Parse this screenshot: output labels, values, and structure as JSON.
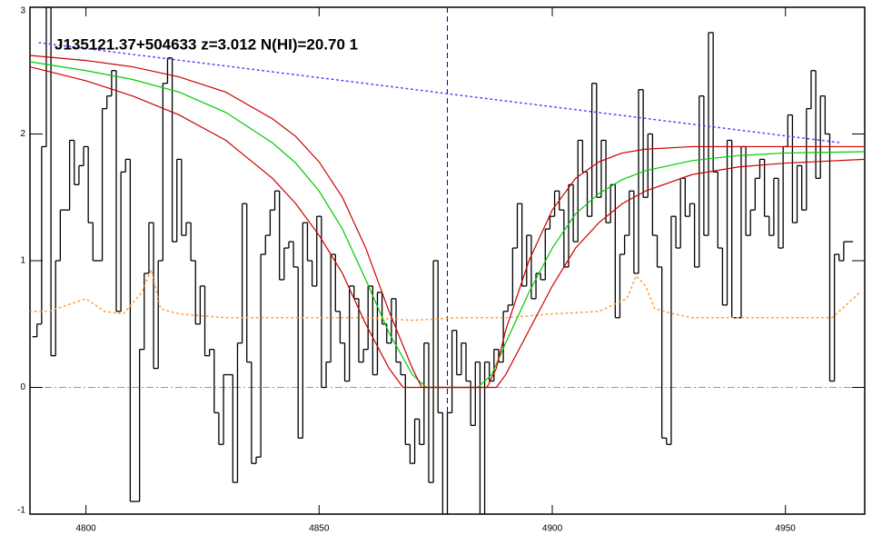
{
  "chart_data": {
    "type": "spectrum",
    "title": "J135121.37+504633 z=3.012 N(HI)=20.70 1",
    "xlim": [
      4788,
      4967
    ],
    "ylim": [
      -1,
      3
    ],
    "xticks": [
      4800,
      4850,
      4900,
      4950
    ],
    "yticks": [
      -1,
      0,
      1,
      2,
      3
    ],
    "reference_lines": [
      {
        "axis": "x",
        "value": 4877.5,
        "color": "#0000cc",
        "style": "dashed"
      },
      {
        "axis": "y",
        "value": 0,
        "color": "#999999",
        "style": "dashdot"
      }
    ],
    "series": [
      {
        "style": "step",
        "color": "#000000",
        "x": [
          4789,
          4790,
          4791,
          4792,
          4793,
          4794,
          4795,
          4796,
          4797,
          4798,
          4799,
          4800,
          4801,
          4802,
          4803,
          4804,
          4805,
          4806,
          4807,
          4808,
          4809,
          4810,
          4811,
          4812,
          4813,
          4814,
          4815,
          4816,
          4817,
          4818,
          4819,
          4820,
          4821,
          4822,
          4823,
          4824,
          4825,
          4826,
          4827,
          4828,
          4829,
          4830,
          4831,
          4832,
          4833,
          4834,
          4835,
          4836,
          4837,
          4838,
          4839,
          4840,
          4841,
          4842,
          4843,
          4844,
          4845,
          4846,
          4847,
          4848,
          4849,
          4850,
          4851,
          4852,
          4853,
          4854,
          4855,
          4856,
          4857,
          4858,
          4859,
          4860,
          4861,
          4862,
          4863,
          4864,
          4865,
          4866,
          4867,
          4868,
          4869,
          4870,
          4871,
          4872,
          4873,
          4874,
          4875,
          4876,
          4877,
          4878,
          4879,
          4880,
          4881,
          4882,
          4883,
          4884,
          4885,
          4886,
          4887,
          4888,
          4889,
          4890,
          4891,
          4892,
          4893,
          4894,
          4895,
          4896,
          4897,
          4898,
          4899,
          4900,
          4901,
          4902,
          4903,
          4904,
          4905,
          4906,
          4907,
          4908,
          4909,
          4910,
          4911,
          4912,
          4913,
          4914,
          4915,
          4916,
          4917,
          4918,
          4919,
          4920,
          4921,
          4922,
          4923,
          4924,
          4925,
          4926,
          4927,
          4928,
          4929,
          4930,
          4931,
          4932,
          4933,
          4934,
          4935,
          4936,
          4937,
          4938,
          4939,
          4940,
          4941,
          4942,
          4943,
          4944,
          4945,
          4946,
          4947,
          4948,
          4949,
          4950,
          4951,
          4952,
          4953,
          4954,
          4955,
          4956,
          4957,
          4958,
          4959,
          4960,
          4961,
          4962,
          4963,
          4964
        ],
        "values": [
          0.4,
          0.5,
          1.9,
          3.0,
          0.25,
          1.0,
          1.4,
          1.4,
          1.95,
          1.6,
          1.75,
          1.9,
          1.3,
          1.0,
          1.0,
          2.2,
          2.3,
          2.5,
          0.6,
          1.7,
          1.8,
          -0.9,
          -0.9,
          0.3,
          0.9,
          1.3,
          0.15,
          1.0,
          2.4,
          2.6,
          1.15,
          1.8,
          1.2,
          1.3,
          1.0,
          0.5,
          0.8,
          0.25,
          0.3,
          -0.2,
          -0.45,
          0.1,
          0.1,
          -0.75,
          0.35,
          1.45,
          0.2,
          -0.6,
          -0.55,
          1.05,
          1.2,
          1.4,
          1.55,
          0.85,
          1.1,
          1.15,
          0.95,
          -0.4,
          1.3,
          1.0,
          0.8,
          1.35,
          0.0,
          0.2,
          1.05,
          0.6,
          0.35,
          0.05,
          0.8,
          0.7,
          0.2,
          0.3,
          0.8,
          0.1,
          0.75,
          0.5,
          0.35,
          0.7,
          0.2,
          0.1,
          -0.45,
          -0.6,
          -0.25,
          -0.45,
          0.35,
          -0.75,
          1.0,
          -0.2,
          -1.0,
          -0.2,
          0.45,
          0.1,
          0.35,
          0.05,
          -0.3,
          0.2,
          -1.0,
          0.2,
          0.05,
          0.3,
          0.2,
          0.6,
          0.65,
          1.1,
          1.45,
          0.8,
          1.2,
          0.7,
          0.9,
          0.85,
          1.25,
          1.35,
          1.55,
          1.4,
          0.95,
          1.6,
          1.15,
          1.95,
          1.7,
          1.35,
          2.4,
          1.5,
          1.95,
          1.3,
          1.6,
          0.55,
          1.05,
          1.2,
          1.55,
          0.9,
          2.35,
          1.5,
          2.0,
          1.2,
          0.95,
          -0.4,
          -0.45,
          1.35,
          1.1,
          1.65,
          1.35,
          1.45,
          0.95,
          2.3,
          1.2,
          2.8,
          1.7,
          1.1,
          0.65,
          1.95,
          0.55,
          0.55,
          1.9,
          1.2,
          1.4,
          1.65,
          1.8,
          1.35,
          1.2,
          1.65,
          1.1,
          1.9,
          2.15,
          1.3,
          1.75,
          1.4,
          2.2,
          2.5,
          1.65,
          2.3,
          2.0,
          0.05,
          1.05,
          1.0,
          1.15,
          1.15
        ]
      },
      {
        "style": "dotted",
        "color": "#ff9933",
        "x": [
          4788,
          4792,
          4796,
          4800,
          4804,
          4808,
          4812,
          4814,
          4816,
          4820,
          4830,
          4840,
          4850,
          4860,
          4870,
          4880,
          4890,
          4900,
          4910,
          4916,
          4918,
          4920,
          4922,
          4926,
          4930,
          4940,
          4950,
          4960,
          4966
        ],
        "values": [
          0.6,
          0.6,
          0.65,
          0.7,
          0.6,
          0.58,
          0.75,
          0.93,
          0.62,
          0.58,
          0.55,
          0.55,
          0.55,
          0.55,
          0.53,
          0.55,
          0.55,
          0.58,
          0.6,
          0.7,
          0.88,
          0.8,
          0.62,
          0.58,
          0.55,
          0.55,
          0.55,
          0.55,
          0.75
        ]
      },
      {
        "style": "dotted",
        "color": "#6a33ff",
        "x": [
          4790,
          4962
        ],
        "values": [
          2.72,
          1.93
        ]
      },
      {
        "style": "line",
        "color": "#00cc00",
        "x": [
          4788,
          4800,
          4810,
          4820,
          4830,
          4840,
          4845,
          4850,
          4855,
          4860,
          4865,
          4870,
          4873,
          4884,
          4887,
          4890,
          4895,
          4900,
          4905,
          4910,
          4915,
          4920,
          4930,
          4940,
          4950,
          4967
        ],
        "values": [
          2.57,
          2.5,
          2.43,
          2.33,
          2.17,
          1.93,
          1.77,
          1.55,
          1.25,
          0.85,
          0.43,
          0.1,
          0.0,
          0.0,
          0.1,
          0.35,
          0.75,
          1.1,
          1.37,
          1.53,
          1.64,
          1.71,
          1.79,
          1.83,
          1.85,
          1.86
        ]
      },
      {
        "style": "line",
        "color": "#cc0000",
        "x": [
          4788,
          4800,
          4810,
          4820,
          4830,
          4840,
          4845,
          4850,
          4855,
          4860,
          4865,
          4870,
          4872,
          4886,
          4888,
          4890,
          4895,
          4900,
          4905,
          4910,
          4915,
          4920,
          4930,
          4950,
          4967
        ],
        "values": [
          2.62,
          2.58,
          2.53,
          2.45,
          2.33,
          2.12,
          1.98,
          1.78,
          1.5,
          1.1,
          0.6,
          0.15,
          0.0,
          0.0,
          0.15,
          0.45,
          1.0,
          1.4,
          1.65,
          1.78,
          1.85,
          1.88,
          1.9,
          1.9,
          1.9
        ]
      },
      {
        "style": "line",
        "color": "#cc0000",
        "x": [
          4788,
          4800,
          4810,
          4820,
          4830,
          4840,
          4845,
          4850,
          4855,
          4860,
          4865,
          4868,
          4888,
          4890,
          4895,
          4900,
          4905,
          4910,
          4915,
          4920,
          4930,
          4940,
          4950,
          4967
        ],
        "values": [
          2.53,
          2.42,
          2.3,
          2.15,
          1.95,
          1.65,
          1.45,
          1.2,
          0.9,
          0.5,
          0.15,
          0.0,
          0.0,
          0.1,
          0.45,
          0.8,
          1.1,
          1.3,
          1.45,
          1.55,
          1.68,
          1.74,
          1.77,
          1.8
        ]
      }
    ]
  }
}
